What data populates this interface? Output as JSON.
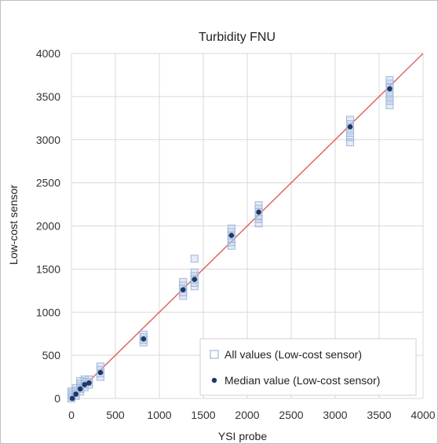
{
  "colors": {
    "grid": "#d9d9d9",
    "frame": "#bfbfbf",
    "all_values": "#9db7d9",
    "all_values_fill": "#b4c7e7",
    "median": "#1f3864",
    "fit_line": "#e06666"
  },
  "chart_data": {
    "type": "scatter",
    "title": "Turbidity FNU",
    "xlabel": "YSI probe",
    "ylabel": "Low-cost sensor",
    "xlim": [
      0,
      4000
    ],
    "ylim": [
      0,
      4000
    ],
    "x_ticks": [
      "0",
      "500",
      "1000",
      "1500",
      "2000",
      "2500",
      "3000",
      "3500",
      "4000"
    ],
    "y_ticks": [
      "0",
      "500",
      "1000",
      "1500",
      "2000",
      "2500",
      "3000",
      "3500",
      "4000"
    ],
    "grid": true,
    "legend_position": "bottom-right",
    "reference_line": {
      "x": [
        0,
        4000
      ],
      "y": [
        0,
        4000
      ]
    },
    "series": [
      {
        "name": "All values (Low-cost sensor)",
        "marker": "open-square",
        "points": [
          [
            0,
            0
          ],
          [
            0,
            20
          ],
          [
            0,
            40
          ],
          [
            0,
            60
          ],
          [
            0,
            80
          ],
          [
            50,
            30
          ],
          [
            50,
            60
          ],
          [
            50,
            90
          ],
          [
            50,
            120
          ],
          [
            100,
            80
          ],
          [
            100,
            110
          ],
          [
            100,
            140
          ],
          [
            100,
            170
          ],
          [
            100,
            200
          ],
          [
            150,
            130
          ],
          [
            150,
            160
          ],
          [
            150,
            190
          ],
          [
            150,
            220
          ],
          [
            200,
            160
          ],
          [
            200,
            190
          ],
          [
            200,
            220
          ],
          [
            330,
            250
          ],
          [
            330,
            290
          ],
          [
            330,
            330
          ],
          [
            330,
            370
          ],
          [
            820,
            650
          ],
          [
            820,
            680
          ],
          [
            820,
            710
          ],
          [
            820,
            740
          ],
          [
            1270,
            1190
          ],
          [
            1270,
            1230
          ],
          [
            1270,
            1270
          ],
          [
            1270,
            1310
          ],
          [
            1270,
            1350
          ],
          [
            1400,
            1300
          ],
          [
            1400,
            1340
          ],
          [
            1400,
            1380
          ],
          [
            1400,
            1420
          ],
          [
            1400,
            1460
          ],
          [
            1400,
            1620
          ],
          [
            1820,
            1770
          ],
          [
            1820,
            1810
          ],
          [
            1820,
            1850
          ],
          [
            1820,
            1890
          ],
          [
            1820,
            1930
          ],
          [
            1820,
            1970
          ],
          [
            2130,
            2030
          ],
          [
            2130,
            2080
          ],
          [
            2130,
            2120
          ],
          [
            2130,
            2160
          ],
          [
            2130,
            2200
          ],
          [
            2130,
            2240
          ],
          [
            3170,
            2970
          ],
          [
            3170,
            3030
          ],
          [
            3170,
            3080
          ],
          [
            3170,
            3130
          ],
          [
            3170,
            3180
          ],
          [
            3170,
            3230
          ],
          [
            3620,
            3400
          ],
          [
            3620,
            3450
          ],
          [
            3620,
            3500
          ],
          [
            3620,
            3550
          ],
          [
            3620,
            3600
          ],
          [
            3620,
            3650
          ],
          [
            3620,
            3690
          ]
        ]
      },
      {
        "name": "Median value (Low-cost sensor)",
        "marker": "filled-circle",
        "points": [
          [
            10,
            0
          ],
          [
            50,
            50
          ],
          [
            100,
            110
          ],
          [
            150,
            160
          ],
          [
            200,
            180
          ],
          [
            330,
            300
          ],
          [
            820,
            690
          ],
          [
            1270,
            1260
          ],
          [
            1400,
            1380
          ],
          [
            1820,
            1890
          ],
          [
            2130,
            2160
          ],
          [
            3170,
            3150
          ],
          [
            3620,
            3590
          ]
        ]
      }
    ]
  }
}
